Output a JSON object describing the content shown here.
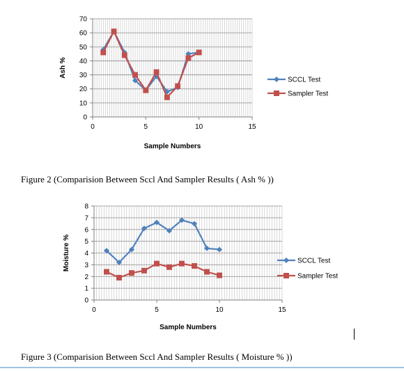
{
  "chart_data": [
    {
      "type": "line",
      "title": "",
      "xlabel": "Sample Numbers",
      "ylabel": "Ash %",
      "xlim": [
        0,
        15
      ],
      "ylim": [
        0,
        70
      ],
      "xticks": [
        "0",
        "5",
        "10",
        "15"
      ],
      "yticks": [
        "0",
        "10",
        "20",
        "30",
        "40",
        "50",
        "60",
        "70"
      ],
      "grid": true,
      "legend_position": "right",
      "series": [
        {
          "name": "SCCL Test",
          "color": "#4f81bd",
          "marker": "diamond",
          "x": [
            1,
            2,
            3,
            4,
            5,
            6,
            7,
            8,
            9,
            10
          ],
          "y": [
            48,
            61,
            46,
            26,
            19,
            29,
            18,
            21,
            45,
            46
          ]
        },
        {
          "name": "Sampler Test",
          "color": "#c0504d",
          "marker": "square",
          "x": [
            1,
            2,
            3,
            4,
            5,
            6,
            7,
            8,
            9,
            10
          ],
          "y": [
            46,
            61,
            44,
            30,
            19,
            32,
            14,
            22,
            42,
            46
          ]
        }
      ]
    },
    {
      "type": "line",
      "title": "",
      "xlabel": "Sample Numbers",
      "ylabel": "Moisture %",
      "xlim": [
        0,
        15
      ],
      "ylim": [
        0,
        8
      ],
      "xticks": [
        "0",
        "5",
        "10",
        "15"
      ],
      "yticks": [
        "0",
        "1",
        "2",
        "3",
        "4",
        "5",
        "6",
        "7",
        "8"
      ],
      "grid": true,
      "legend_position": "right",
      "series": [
        {
          "name": "SCCL Test",
          "color": "#4f81bd",
          "marker": "diamond",
          "x": [
            1,
            2,
            3,
            4,
            5,
            6,
            7,
            8,
            9,
            10
          ],
          "y": [
            4.2,
            3.2,
            4.3,
            6.1,
            6.6,
            5.9,
            6.8,
            6.5,
            4.4,
            4.3
          ]
        },
        {
          "name": "Sampler Test",
          "color": "#c0504d",
          "marker": "square",
          "x": [
            1,
            2,
            3,
            4,
            5,
            6,
            7,
            8,
            9,
            10
          ],
          "y": [
            2.4,
            1.9,
            2.3,
            2.5,
            3.1,
            2.8,
            3.1,
            2.9,
            2.4,
            2.1
          ]
        }
      ]
    }
  ],
  "captions": {
    "figure2": "Figure 2 (Comparision Between Sccl And Sampler Results ( Ash % ))",
    "figure3": "Figure 3 (Comparision Between Sccl And Sampler Results ( Moisture % ))"
  }
}
